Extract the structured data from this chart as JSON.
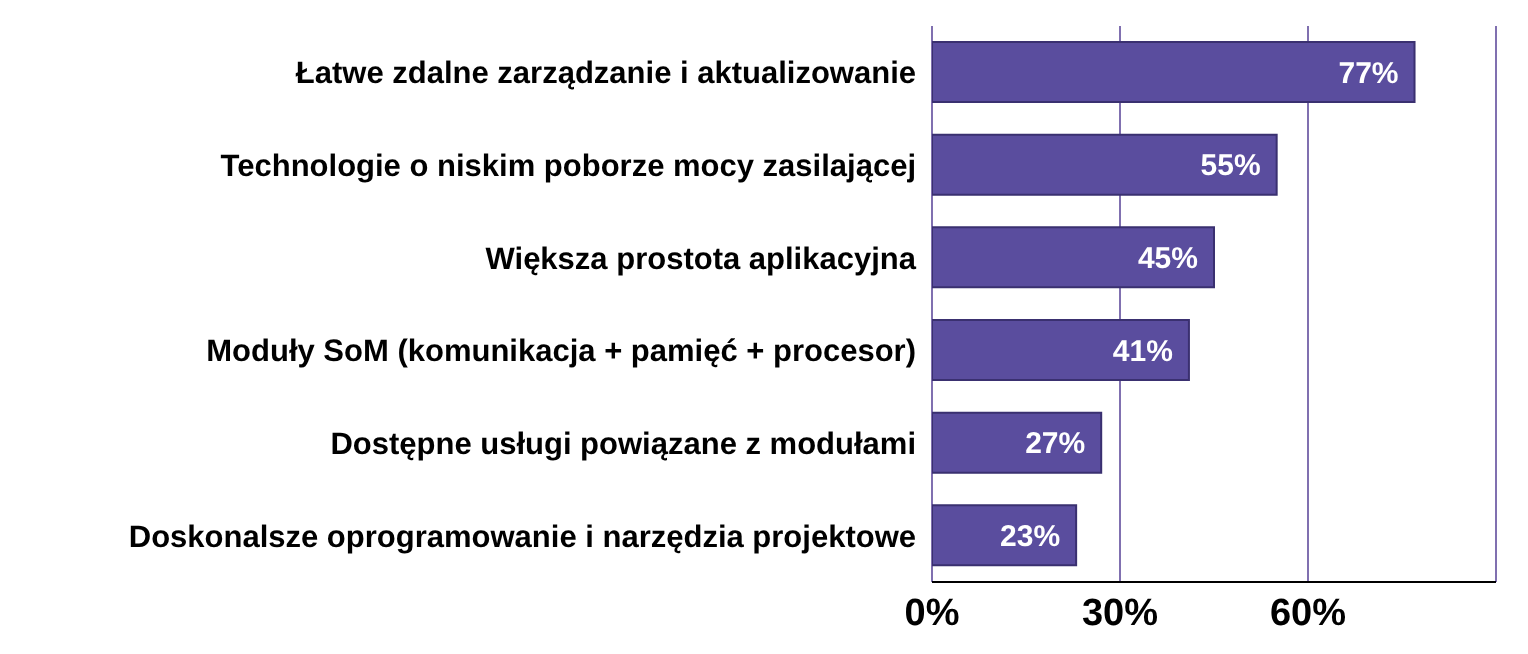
{
  "chart_data": {
    "type": "bar",
    "orientation": "horizontal",
    "categories": [
      "Łatwe zdalne zarządzanie i aktualizowanie",
      "Technologie o niskim poborze mocy zasilającej",
      "Większa prostota aplikacyjna",
      "Moduły SoM (komunikacja + pamięć + procesor)",
      "Dostępne usługi powiązane z modułami",
      "Doskonalsze oprogramowanie i narzędzia projektowe"
    ],
    "values": [
      77,
      55,
      45,
      41,
      27,
      23
    ],
    "value_labels": [
      "77%",
      "55%",
      "45%",
      "41%",
      "27%",
      "23%"
    ],
    "color": "#5a4d9e",
    "xlim": [
      0,
      90
    ],
    "xticks": [
      {
        "value": 0,
        "label": "0%"
      },
      {
        "value": 30,
        "label": "30%"
      },
      {
        "value": 60,
        "label": "60%"
      },
      {
        "value": 90,
        "label": null
      }
    ],
    "grid": "x"
  }
}
